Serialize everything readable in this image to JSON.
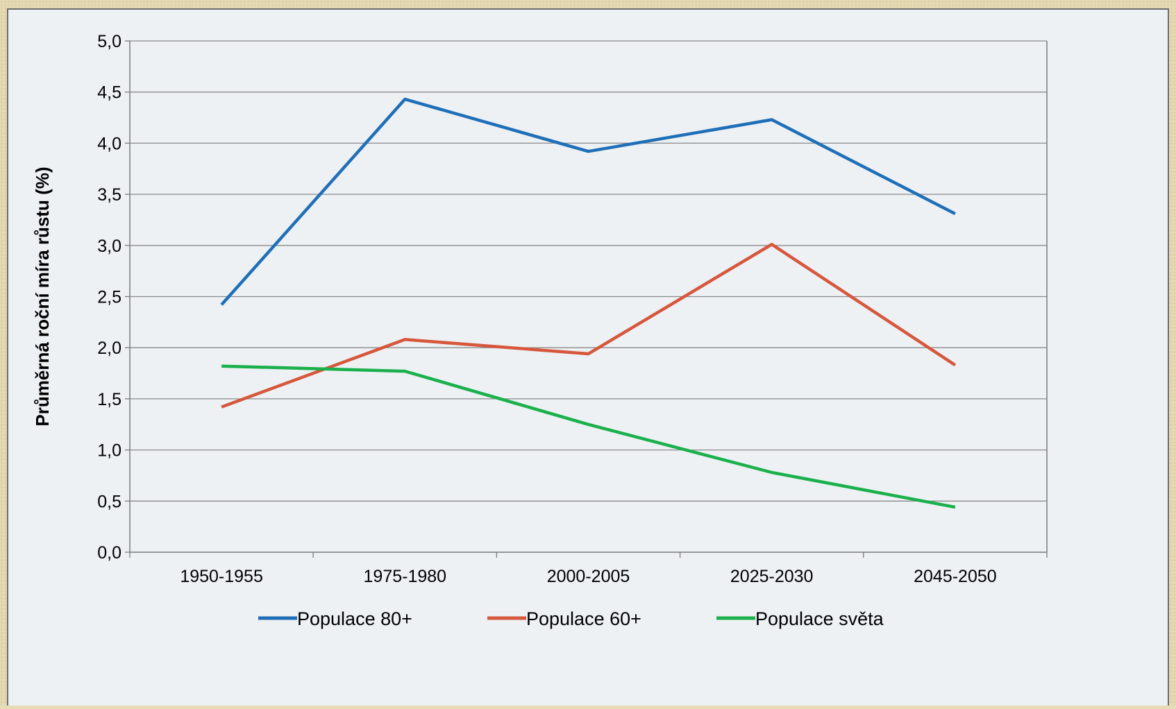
{
  "chart_data": {
    "type": "line",
    "categories": [
      "1950-1955",
      "1975-1980",
      "2000-2005",
      "2025-2030",
      "2045-2050"
    ],
    "series": [
      {
        "name": "Populace 80+",
        "values": [
          2.42,
          4.43,
          3.92,
          4.23,
          3.31
        ],
        "color": "#1f6fb8"
      },
      {
        "name": "Populace 60+",
        "values": [
          1.42,
          2.08,
          1.94,
          3.01,
          1.83
        ],
        "color": "#d6573c"
      },
      {
        "name": "Populace světa",
        "values": [
          1.82,
          1.77,
          1.25,
          0.78,
          0.44
        ],
        "color": "#1ab04b"
      }
    ],
    "title": "",
    "xlabel": "",
    "ylabel": "Průměrná roční míra růstu (%)",
    "ylim": [
      0,
      5
    ],
    "yticks": [
      "0,0",
      "0,5",
      "1,0",
      "1,5",
      "2,0",
      "2,5",
      "3,0",
      "3,5",
      "4,0",
      "4,5",
      "5,0"
    ],
    "grid": true,
    "legend_position": "bottom"
  }
}
